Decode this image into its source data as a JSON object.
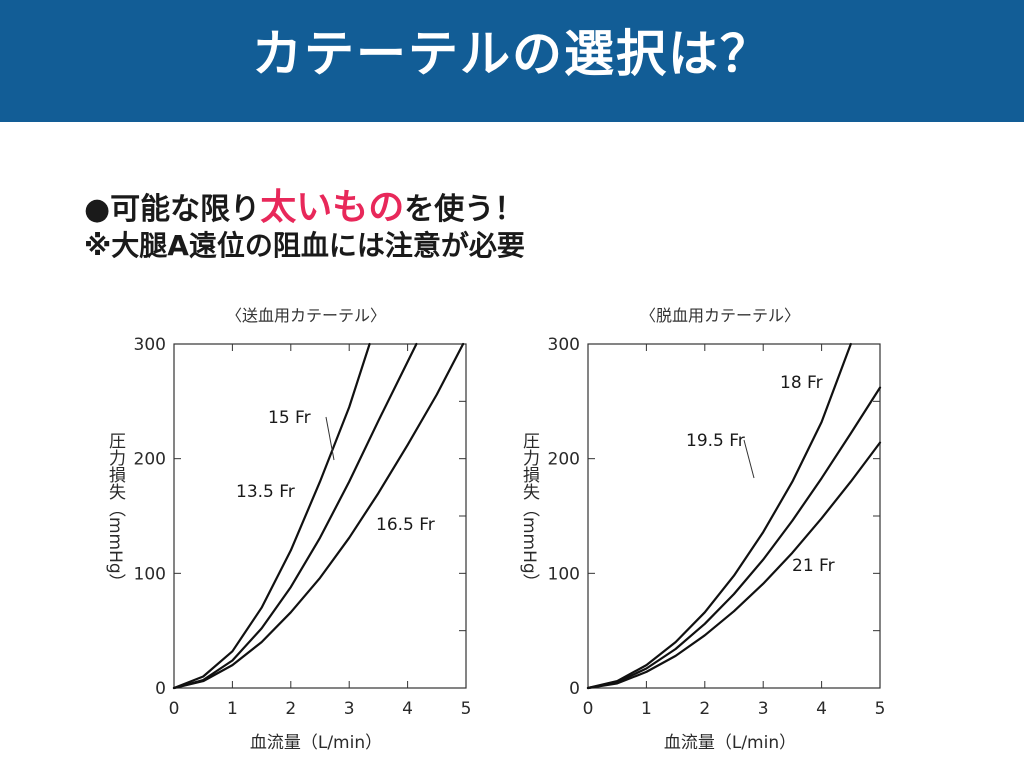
{
  "header": {
    "title": "カテーテルの選択は？"
  },
  "bullets": {
    "line1_prefix": "●可能な限り",
    "line1_emphasis": "太いもの",
    "line1_suffix": "を使う！",
    "line2": "※大腿A遠位の阻血には注意が必要"
  },
  "colors": {
    "banner": "#125d96",
    "emphasis": "#e8285a"
  },
  "chart_data": [
    {
      "type": "line",
      "title": "〈送血用カテーテル〉",
      "xlabel": "血流量（L/min）",
      "ylabel": "圧力損失（mmHg）",
      "xlim": [
        0,
        5
      ],
      "ylim": [
        0,
        300
      ],
      "xticks": [
        "0",
        "1",
        "2",
        "3",
        "4",
        "5"
      ],
      "yticks": [
        "0",
        "100",
        "200",
        "300"
      ],
      "grid": false,
      "series": [
        {
          "name": "13.5 Fr",
          "x": [
            0,
            0.5,
            1,
            1.5,
            2,
            2.5,
            3,
            3.35
          ],
          "y": [
            0,
            10,
            32,
            70,
            120,
            180,
            245,
            300
          ]
        },
        {
          "name": "15 Fr",
          "x": [
            0,
            0.5,
            1,
            1.5,
            2,
            2.5,
            3,
            3.5,
            4.15
          ],
          "y": [
            0,
            7,
            24,
            52,
            88,
            131,
            180,
            233,
            300
          ]
        },
        {
          "name": "16.5 Fr",
          "x": [
            0,
            0.5,
            1,
            1.5,
            2,
            2.5,
            3,
            3.5,
            4,
            4.5,
            4.95
          ],
          "y": [
            0,
            6,
            20,
            40,
            66,
            96,
            131,
            170,
            212,
            256,
            300
          ]
        }
      ]
    },
    {
      "type": "line",
      "title": "〈脱血用カテーテル〉",
      "xlabel": "血流量（L/min）",
      "ylabel": "圧力損失（mmHg）",
      "xlim": [
        0,
        5
      ],
      "ylim": [
        0,
        300
      ],
      "xticks": [
        "0",
        "1",
        "2",
        "3",
        "4",
        "5"
      ],
      "yticks": [
        "0",
        "100",
        "200",
        "300"
      ],
      "grid": false,
      "series": [
        {
          "name": "18 Fr",
          "x": [
            0,
            0.5,
            1,
            1.5,
            2,
            2.5,
            3,
            3.5,
            4,
            4.5
          ],
          "y": [
            0,
            6,
            20,
            40,
            66,
            98,
            136,
            180,
            232,
            300
          ]
        },
        {
          "name": "19.5 Fr",
          "x": [
            0,
            0.5,
            1,
            1.5,
            2,
            2.5,
            3,
            3.5,
            4,
            4.5,
            5
          ],
          "y": [
            0,
            5,
            17,
            34,
            56,
            82,
            112,
            146,
            183,
            222,
            262
          ]
        },
        {
          "name": "21 Fr",
          "x": [
            0,
            0.5,
            1,
            1.5,
            2,
            2.5,
            3,
            3.5,
            4,
            4.5,
            5
          ],
          "y": [
            0,
            4,
            14,
            28,
            46,
            67,
            91,
            118,
            148,
            180,
            214
          ]
        }
      ]
    }
  ]
}
